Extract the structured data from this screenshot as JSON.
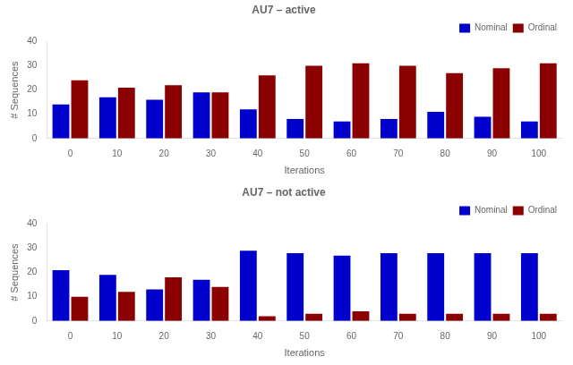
{
  "chart_data": [
    {
      "type": "bar",
      "title": "AU7 – active",
      "categories": [
        "0",
        "10",
        "20",
        "30",
        "40",
        "50",
        "60",
        "70",
        "80",
        "90",
        "100"
      ],
      "series": [
        {
          "name": "Nominal",
          "color": "#0000CC",
          "values": [
            14,
            17,
            16,
            19,
            12,
            8,
            7,
            8,
            11,
            9,
            7
          ]
        },
        {
          "name": "Ordinal",
          "color": "#8B0000",
          "values": [
            24,
            21,
            22,
            19,
            26,
            30,
            31,
            30,
            27,
            29,
            31
          ]
        }
      ],
      "xlabel": "Iterations",
      "ylabel": "# Sequences",
      "ylim": [
        0,
        40
      ],
      "yticks": [
        0,
        10,
        20,
        30,
        40
      ],
      "grid": false,
      "legend": "upper right"
    },
    {
      "type": "bar",
      "title": "AU7 – not active",
      "categories": [
        "0",
        "10",
        "20",
        "30",
        "40",
        "50",
        "60",
        "70",
        "80",
        "90",
        "100"
      ],
      "series": [
        {
          "name": "Nominal",
          "color": "#0000CC",
          "values": [
            21,
            19,
            13,
            17,
            29,
            28,
            27,
            28,
            28,
            28,
            28
          ]
        },
        {
          "name": "Ordinal",
          "color": "#8B0000",
          "values": [
            10,
            12,
            18,
            14,
            2,
            3,
            4,
            3,
            3,
            3,
            3
          ]
        }
      ],
      "xlabel": "Iterations",
      "ylabel": "# Sequences",
      "ylim": [
        0,
        40
      ],
      "yticks": [
        0,
        10,
        20,
        30,
        40
      ],
      "grid": false,
      "legend": "upper right"
    }
  ]
}
